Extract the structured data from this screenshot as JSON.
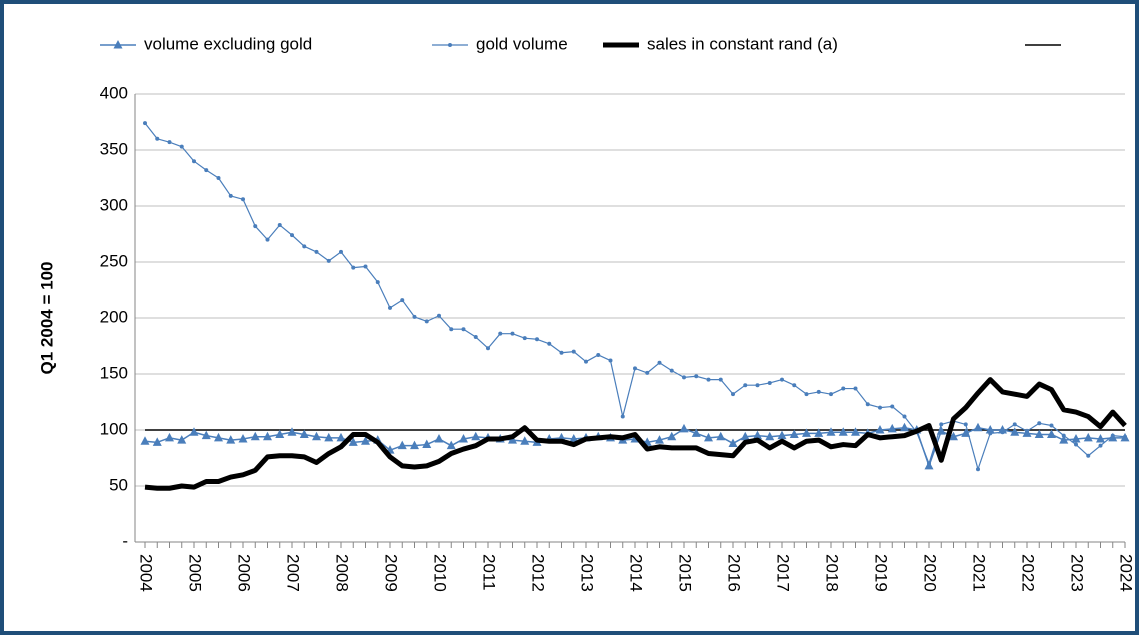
{
  "chart_data": {
    "type": "line",
    "y_axis_label": "Q1 2004 = 100",
    "categories": [
      "2004",
      null,
      null,
      null,
      "2005",
      null,
      null,
      null,
      "2006",
      null,
      null,
      null,
      "2007",
      null,
      null,
      null,
      "2008",
      null,
      null,
      null,
      "2009",
      null,
      null,
      null,
      "2010",
      null,
      null,
      null,
      "2011",
      null,
      null,
      null,
      "2012",
      null,
      null,
      null,
      "2013",
      null,
      null,
      null,
      "2014",
      null,
      null,
      null,
      "2015",
      null,
      null,
      null,
      "2016",
      null,
      null,
      null,
      "2017",
      null,
      null,
      null,
      "2018",
      null,
      null,
      null,
      "2019",
      null,
      null,
      null,
      "2020",
      null,
      null,
      null,
      "2021",
      null,
      null,
      null,
      "2022",
      null,
      null,
      null,
      "2023",
      null,
      null,
      null,
      "2024"
    ],
    "ylim": [
      0,
      400
    ],
    "yticks": [
      {
        "value": 0,
        "label": "-"
      },
      50,
      100,
      150,
      200,
      250,
      300,
      350,
      400
    ],
    "grid": true,
    "legend": "top",
    "series": [
      {
        "name": "volume excluding gold",
        "color": "#4a7ebb",
        "marker": "triangle",
        "width": 1.5,
        "values": [
          90,
          89,
          93,
          91,
          98,
          95,
          93,
          91,
          92,
          94,
          94,
          96,
          98,
          96,
          94,
          93,
          93,
          89,
          90,
          91,
          82,
          86,
          86,
          87,
          92,
          86,
          92,
          94,
          93,
          92,
          91,
          90,
          89,
          92,
          93,
          92,
          93,
          94,
          93,
          91,
          92,
          89,
          91,
          94,
          101,
          97,
          93,
          94,
          88,
          94,
          95,
          94,
          95,
          96,
          97,
          97,
          98,
          98,
          98,
          97,
          100,
          101,
          102,
          100,
          68,
          99,
          94,
          97,
          102,
          100,
          100,
          98,
          97,
          96,
          96,
          91,
          92,
          93,
          92,
          93,
          93
        ]
      },
      {
        "name": "gold volume",
        "color": "#4a7ebb",
        "marker": "dot",
        "width": 1.2,
        "values": [
          374,
          360,
          357,
          353,
          340,
          332,
          325,
          309,
          306,
          282,
          270,
          283,
          274,
          264,
          259,
          251,
          259,
          245,
          246,
          232,
          209,
          216,
          201,
          197,
          202,
          190,
          190,
          183,
          173,
          186,
          186,
          182,
          181,
          177,
          169,
          170,
          161,
          167,
          162,
          112,
          155,
          151,
          160,
          153,
          147,
          148,
          145,
          145,
          132,
          140,
          140,
          142,
          145,
          140,
          132,
          134,
          132,
          137,
          137,
          123,
          120,
          121,
          112,
          98,
          70,
          105,
          108,
          105,
          65,
          97,
          98,
          105,
          99,
          106,
          104,
          95,
          87,
          77,
          86,
          95,
          94
        ]
      },
      {
        "name": "sales in constant rand (a)",
        "color": "#000000",
        "marker": "none",
        "width": 5,
        "values": [
          49,
          48,
          48,
          50,
          49,
          54,
          54,
          58,
          60,
          64,
          76,
          77,
          77,
          76,
          71,
          79,
          85,
          96,
          96,
          89,
          76,
          68,
          67,
          68,
          72,
          79,
          83,
          86,
          92,
          92,
          94,
          102,
          91,
          90,
          90,
          87,
          92,
          93,
          94,
          93,
          96,
          83,
          85,
          84,
          84,
          84,
          79,
          78,
          77,
          89,
          91,
          84,
          90,
          84,
          90,
          91,
          85,
          87,
          86,
          96,
          93,
          94,
          95,
          99,
          104,
          73,
          110,
          120,
          133,
          145,
          134,
          132,
          130,
          141,
          136,
          118,
          116,
          112,
          103,
          116,
          104
        ]
      },
      {
        "color": "#000000",
        "marker": "none",
        "width": 1.5,
        "values": [
          100,
          100,
          100,
          100,
          100,
          100,
          100,
          100,
          100,
          100,
          100,
          100,
          100,
          100,
          100,
          100,
          100,
          100,
          100,
          100,
          100,
          100,
          100,
          100,
          100,
          100,
          100,
          100,
          100,
          100,
          100,
          100,
          100,
          100,
          100,
          100,
          100,
          100,
          100,
          100,
          100,
          100,
          100,
          100,
          100,
          100,
          100,
          100,
          100,
          100,
          100,
          100,
          100,
          100,
          100,
          100,
          100,
          100,
          100,
          100,
          100,
          100,
          100,
          100,
          100,
          100,
          100,
          100,
          100,
          100,
          100,
          100,
          100,
          100,
          100,
          100,
          100,
          100,
          100,
          100,
          100
        ]
      }
    ]
  }
}
